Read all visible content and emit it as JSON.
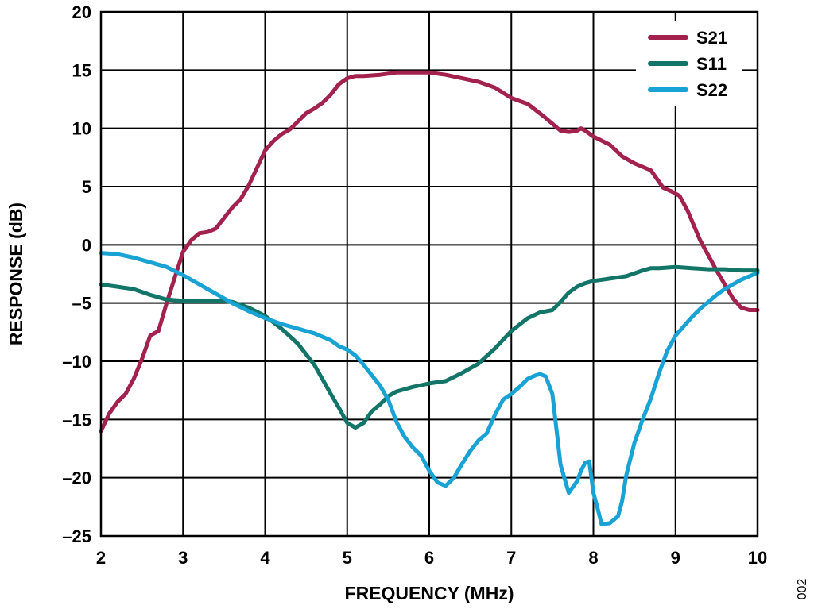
{
  "chart_data": {
    "type": "line",
    "xlabel": "FREQUENCY (MHz)",
    "ylabel": "RESPONSE (dB)",
    "xlim": [
      2,
      10
    ],
    "ylim": [
      -25,
      20
    ],
    "xticks": [
      2,
      3,
      4,
      5,
      6,
      7,
      8,
      9,
      10
    ],
    "yticks": [
      20,
      15,
      10,
      5,
      0,
      -5,
      -10,
      -15,
      -20,
      -25
    ],
    "ytick_labels": [
      "20",
      "15",
      "10",
      "5",
      "0",
      "–5",
      "–10",
      "–15",
      "–20",
      "–25"
    ],
    "grid": true,
    "legend_position": "top-right",
    "series": [
      {
        "name": "S21",
        "color": "#A3224D",
        "points": [
          [
            2.0,
            -16.0
          ],
          [
            2.1,
            -14.5
          ],
          [
            2.2,
            -13.5
          ],
          [
            2.3,
            -12.8
          ],
          [
            2.4,
            -11.5
          ],
          [
            2.5,
            -9.8
          ],
          [
            2.6,
            -7.8
          ],
          [
            2.7,
            -7.4
          ],
          [
            2.8,
            -5.0
          ],
          [
            2.9,
            -2.8
          ],
          [
            3.0,
            -0.6
          ],
          [
            3.1,
            0.4
          ],
          [
            3.2,
            1.0
          ],
          [
            3.3,
            1.1
          ],
          [
            3.4,
            1.4
          ],
          [
            3.5,
            2.3
          ],
          [
            3.6,
            3.2
          ],
          [
            3.7,
            3.9
          ],
          [
            3.8,
            5.1
          ],
          [
            3.9,
            6.6
          ],
          [
            4.0,
            8.1
          ],
          [
            4.1,
            8.9
          ],
          [
            4.2,
            9.5
          ],
          [
            4.3,
            9.9
          ],
          [
            4.4,
            10.6
          ],
          [
            4.5,
            11.3
          ],
          [
            4.6,
            11.7
          ],
          [
            4.7,
            12.2
          ],
          [
            4.8,
            12.9
          ],
          [
            4.9,
            13.8
          ],
          [
            5.0,
            14.3
          ],
          [
            5.1,
            14.5
          ],
          [
            5.2,
            14.5
          ],
          [
            5.4,
            14.6
          ],
          [
            5.6,
            14.8
          ],
          [
            5.8,
            14.8
          ],
          [
            6.0,
            14.8
          ],
          [
            6.2,
            14.6
          ],
          [
            6.4,
            14.3
          ],
          [
            6.6,
            14.0
          ],
          [
            6.8,
            13.5
          ],
          [
            7.0,
            12.6
          ],
          [
            7.2,
            12.1
          ],
          [
            7.4,
            11.0
          ],
          [
            7.6,
            9.8
          ],
          [
            7.7,
            9.7
          ],
          [
            7.8,
            9.8
          ],
          [
            7.85,
            10.0
          ],
          [
            7.9,
            9.8
          ],
          [
            8.0,
            9.3
          ],
          [
            8.2,
            8.6
          ],
          [
            8.35,
            7.6
          ],
          [
            8.5,
            7.0
          ],
          [
            8.7,
            6.4
          ],
          [
            8.85,
            4.9
          ],
          [
            8.95,
            4.6
          ],
          [
            9.05,
            4.2
          ],
          [
            9.15,
            2.9
          ],
          [
            9.3,
            0.4
          ],
          [
            9.5,
            -2.2
          ],
          [
            9.7,
            -4.6
          ],
          [
            9.8,
            -5.4
          ],
          [
            9.9,
            -5.6
          ],
          [
            10.0,
            -5.6
          ]
        ]
      },
      {
        "name": "S11",
        "color": "#137567",
        "points": [
          [
            2.0,
            -3.4
          ],
          [
            2.2,
            -3.6
          ],
          [
            2.4,
            -3.8
          ],
          [
            2.6,
            -4.3
          ],
          [
            2.8,
            -4.7
          ],
          [
            3.0,
            -4.8
          ],
          [
            3.2,
            -4.8
          ],
          [
            3.4,
            -4.8
          ],
          [
            3.6,
            -4.9
          ],
          [
            3.8,
            -5.4
          ],
          [
            4.0,
            -6.1
          ],
          [
            4.2,
            -7.2
          ],
          [
            4.4,
            -8.5
          ],
          [
            4.6,
            -10.3
          ],
          [
            4.8,
            -12.8
          ],
          [
            4.9,
            -14.0
          ],
          [
            5.0,
            -15.3
          ],
          [
            5.1,
            -15.7
          ],
          [
            5.2,
            -15.3
          ],
          [
            5.3,
            -14.3
          ],
          [
            5.4,
            -13.7
          ],
          [
            5.5,
            -13.0
          ],
          [
            5.6,
            -12.6
          ],
          [
            5.8,
            -12.2
          ],
          [
            6.0,
            -11.9
          ],
          [
            6.2,
            -11.7
          ],
          [
            6.4,
            -11.0
          ],
          [
            6.6,
            -10.2
          ],
          [
            6.8,
            -8.9
          ],
          [
            7.0,
            -7.4
          ],
          [
            7.2,
            -6.3
          ],
          [
            7.35,
            -5.8
          ],
          [
            7.5,
            -5.6
          ],
          [
            7.6,
            -4.9
          ],
          [
            7.7,
            -4.1
          ],
          [
            7.8,
            -3.6
          ],
          [
            7.9,
            -3.3
          ],
          [
            8.0,
            -3.1
          ],
          [
            8.2,
            -2.9
          ],
          [
            8.4,
            -2.7
          ],
          [
            8.6,
            -2.2
          ],
          [
            8.7,
            -2.0
          ],
          [
            8.8,
            -2.0
          ],
          [
            9.0,
            -1.9
          ],
          [
            9.2,
            -2.0
          ],
          [
            9.4,
            -2.1
          ],
          [
            9.6,
            -2.1
          ],
          [
            9.8,
            -2.2
          ],
          [
            10.0,
            -2.2
          ]
        ]
      },
      {
        "name": "S22",
        "color": "#19A3D4",
        "points": [
          [
            2.0,
            -0.7
          ],
          [
            2.2,
            -0.8
          ],
          [
            2.4,
            -1.1
          ],
          [
            2.6,
            -1.5
          ],
          [
            2.8,
            -1.9
          ],
          [
            3.0,
            -2.6
          ],
          [
            3.2,
            -3.4
          ],
          [
            3.4,
            -4.2
          ],
          [
            3.6,
            -5.0
          ],
          [
            3.8,
            -5.7
          ],
          [
            4.0,
            -6.3
          ],
          [
            4.2,
            -6.8
          ],
          [
            4.4,
            -7.2
          ],
          [
            4.6,
            -7.6
          ],
          [
            4.8,
            -8.2
          ],
          [
            4.9,
            -8.7
          ],
          [
            5.0,
            -9.0
          ],
          [
            5.1,
            -9.5
          ],
          [
            5.2,
            -10.3
          ],
          [
            5.3,
            -11.2
          ],
          [
            5.4,
            -12.1
          ],
          [
            5.5,
            -13.3
          ],
          [
            5.6,
            -15.2
          ],
          [
            5.7,
            -16.5
          ],
          [
            5.8,
            -17.4
          ],
          [
            5.9,
            -18.1
          ],
          [
            6.0,
            -19.4
          ],
          [
            6.1,
            -20.4
          ],
          [
            6.2,
            -20.7
          ],
          [
            6.3,
            -20.0
          ],
          [
            6.4,
            -18.8
          ],
          [
            6.5,
            -17.7
          ],
          [
            6.6,
            -16.8
          ],
          [
            6.7,
            -16.2
          ],
          [
            6.8,
            -14.6
          ],
          [
            6.9,
            -13.3
          ],
          [
            7.0,
            -12.8
          ],
          [
            7.1,
            -12.2
          ],
          [
            7.2,
            -11.5
          ],
          [
            7.3,
            -11.2
          ],
          [
            7.35,
            -11.1
          ],
          [
            7.42,
            -11.3
          ],
          [
            7.5,
            -12.8
          ],
          [
            7.6,
            -18.9
          ],
          [
            7.7,
            -21.3
          ],
          [
            7.8,
            -20.3
          ],
          [
            7.85,
            -19.4
          ],
          [
            7.9,
            -18.7
          ],
          [
            7.95,
            -18.6
          ],
          [
            8.0,
            -21.3
          ],
          [
            8.05,
            -22.6
          ],
          [
            8.1,
            -24.0
          ],
          [
            8.2,
            -23.9
          ],
          [
            8.3,
            -23.3
          ],
          [
            8.35,
            -22.0
          ],
          [
            8.4,
            -19.8
          ],
          [
            8.5,
            -17.0
          ],
          [
            8.6,
            -15.0
          ],
          [
            8.7,
            -13.2
          ],
          [
            8.8,
            -11.0
          ],
          [
            8.9,
            -9.1
          ],
          [
            9.0,
            -7.8
          ],
          [
            9.1,
            -7.0
          ],
          [
            9.2,
            -6.2
          ],
          [
            9.3,
            -5.5
          ],
          [
            9.4,
            -4.9
          ],
          [
            9.5,
            -4.3
          ],
          [
            9.6,
            -3.8
          ],
          [
            9.7,
            -3.4
          ],
          [
            9.8,
            -3.0
          ],
          [
            9.9,
            -2.7
          ],
          [
            10.0,
            -2.4
          ]
        ]
      }
    ]
  },
  "figure_id": "002"
}
